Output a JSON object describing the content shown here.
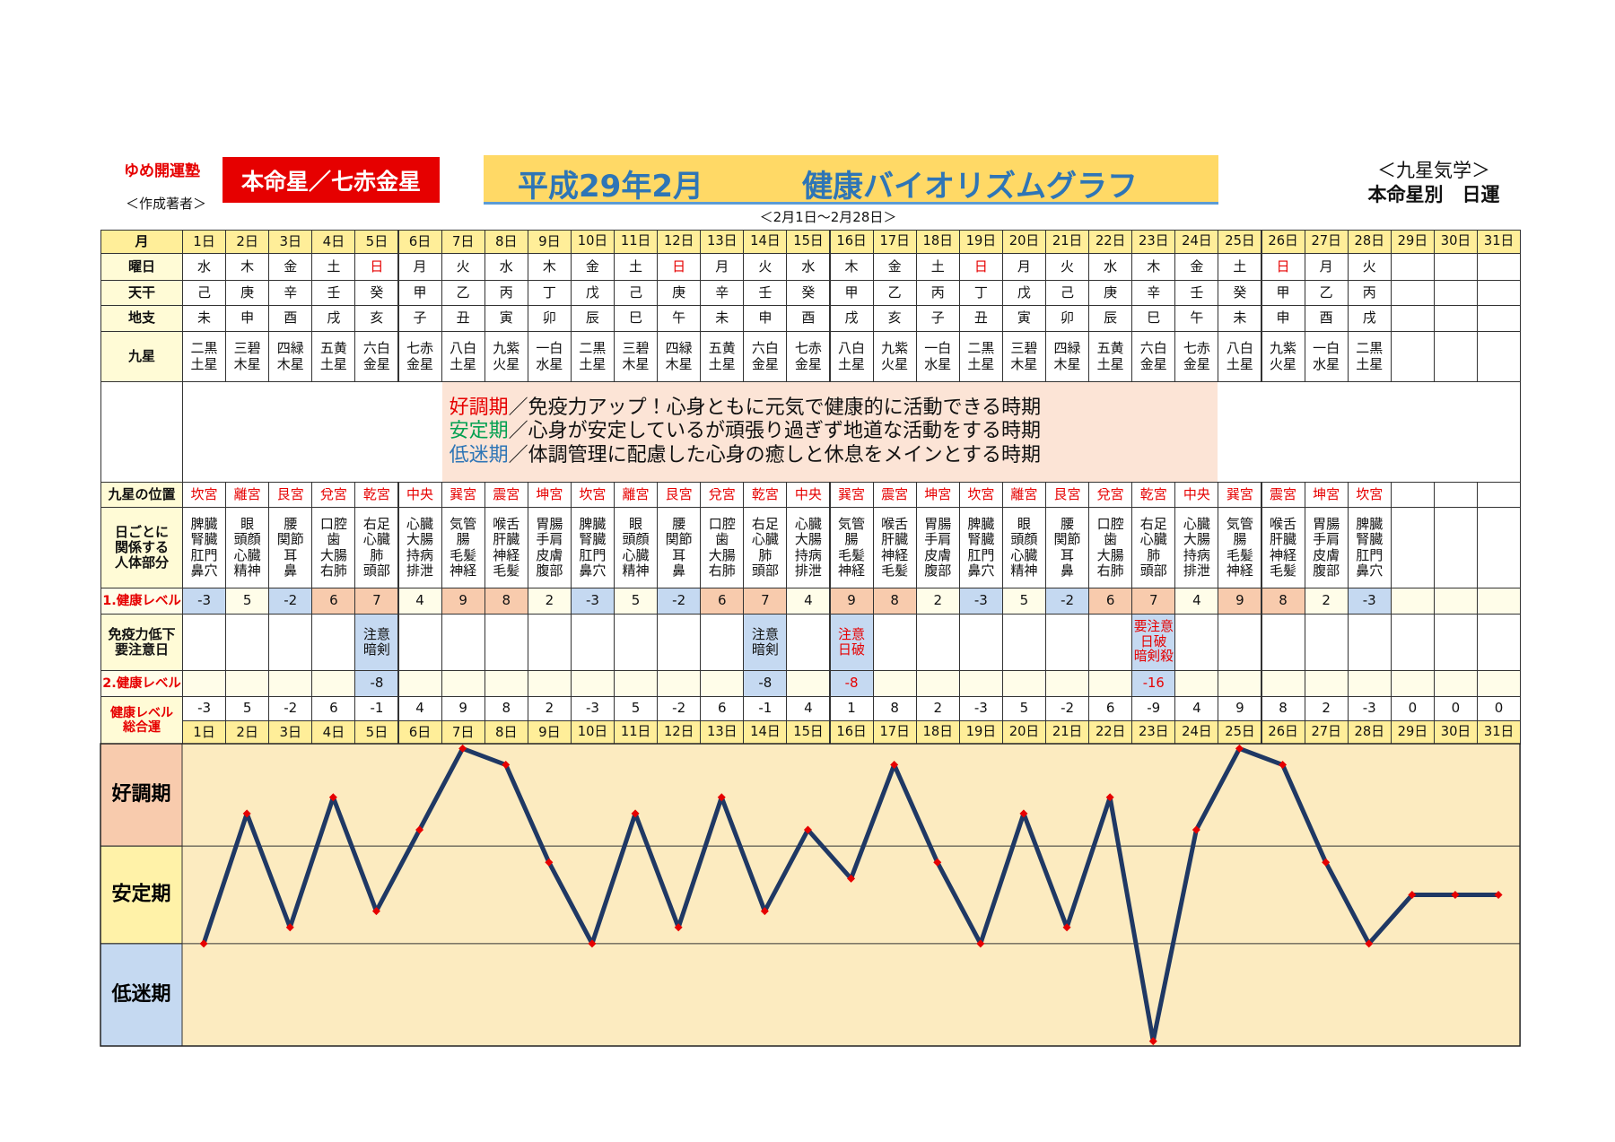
{
  "header": {
    "org": "ゆめ開運塾",
    "author": "＜作成著者＞",
    "star": "本命星／七赤金星",
    "title_month": "平成29年2月",
    "title": "健康バイオリズムグラフ",
    "period": "＜2月1日～2月28日＞",
    "school": "＜九星気学＞",
    "kind": "本命星別　日運"
  },
  "table": {
    "rows": [
      {
        "label": "月",
        "bg": "#ffee99",
        "cells": [
          "1日",
          "2日",
          "3日",
          "4日",
          "5日",
          "6日",
          "7日",
          "8日",
          "9日",
          "10日",
          "11日",
          "12日",
          "13日",
          "14日",
          "15日",
          "16日",
          "17日",
          "18日",
          "19日",
          "20日",
          "21日",
          "22日",
          "23日",
          "24日",
          "25日",
          "26日",
          "27日",
          "28日",
          "29日",
          "30日",
          "31日"
        ]
      },
      {
        "label": "曜日",
        "cells": [
          "水",
          "木",
          "金",
          "土",
          {
            "text": "日",
            "color": "#e60000"
          },
          "月",
          "火",
          "水",
          "木",
          "金",
          "土",
          {
            "text": "日",
            "color": "#e60000"
          },
          "月",
          "火",
          "水",
          "木",
          "金",
          "土",
          {
            "text": "日",
            "color": "#e60000"
          },
          "月",
          "火",
          "水",
          "木",
          "金",
          "土",
          {
            "text": "日",
            "color": "#e60000"
          },
          "月",
          "火",
          null,
          null,
          null
        ]
      },
      {
        "label": "天干",
        "cells": [
          "己",
          "庚",
          "辛",
          "壬",
          "癸",
          "甲",
          "乙",
          "丙",
          "丁",
          "戊",
          "己",
          "庚",
          "辛",
          "壬",
          "癸",
          "甲",
          "乙",
          "丙",
          "丁",
          "戊",
          "己",
          "庚",
          "辛",
          "壬",
          "癸",
          "甲",
          "乙",
          "丙",
          null,
          null,
          null
        ]
      },
      {
        "label": "地支",
        "cells": [
          "未",
          "申",
          "酉",
          "戌",
          "亥",
          "子",
          "丑",
          "寅",
          "卯",
          "辰",
          "巳",
          "午",
          "未",
          "申",
          "酉",
          "戌",
          "亥",
          "子",
          "丑",
          "寅",
          "卯",
          "辰",
          "巳",
          "午",
          "未",
          "申",
          "酉",
          "戌",
          null,
          null,
          null
        ]
      },
      {
        "label": "九星",
        "cells": [
          "二黒\n土星",
          "三碧\n木星",
          "四緑\n木星",
          "五黄\n土星",
          "六白\n金星",
          "七赤\n金星",
          "八白\n土星",
          "九紫\n火星",
          "一白\n水星",
          "二黒\n土星",
          "三碧\n木星",
          "四緑\n木星",
          "五黄\n土星",
          "六白\n金星",
          "七赤\n金星",
          "八白\n土星",
          "九紫\n火星",
          "一白\n水星",
          "二黒\n土星",
          "三碧\n木星",
          "四緑\n木星",
          "五黄\n土星",
          "六白\n金星",
          "七赤\n金星",
          "八白\n土星",
          "九紫\n火星",
          "一白\n水星",
          "二黒\n土星",
          null,
          null,
          null
        ]
      },
      {
        "label": "九星の位置",
        "color": "#e60000",
        "cells": [
          "坎宮",
          "離宮",
          "艮宮",
          "兌宮",
          "乾宮",
          "中央",
          "巽宮",
          "震宮",
          "坤宮",
          "坎宮",
          "離宮",
          "艮宮",
          "兌宮",
          "乾宮",
          "中央",
          "巽宮",
          "震宮",
          "坤宮",
          "坎宮",
          "離宮",
          "艮宮",
          "兌宮",
          "乾宮",
          "中央",
          "巽宮",
          "震宮",
          "坤宮",
          "坎宮",
          null,
          null,
          null
        ]
      },
      {
        "label": "日ごとに\n関係する\n人体部分",
        "cells": [
          "脾臓\n腎臓\n肛門\n鼻穴",
          "眼\n頭顔\n心臓\n精神",
          "腰\n関節\n耳\n鼻",
          "口腔\n歯\n大腸\n右肺",
          "右足\n心臓\n肺\n頭部",
          "心臓\n大腸\n持病\n排泄",
          "気管\n腸\n毛髪\n神経",
          "喉舌\n肝臓\n神経\n毛髪",
          "胃腸\n手肩\n皮膚\n腹部",
          "脾臓\n腎臓\n肛門\n鼻穴",
          "眼\n頭顔\n心臓\n精神",
          "腰\n関節\n耳\n鼻",
          "口腔\n歯\n大腸\n右肺",
          "右足\n心臓\n肺\n頭部",
          "心臓\n大腸\n持病\n排泄",
          "気管\n腸\n毛髪\n神経",
          "喉舌\n肝臓\n神経\n毛髪",
          "胃腸\n手肩\n皮膚\n腹部",
          "脾臓\n腎臓\n肛門\n鼻穴",
          "眼\n頭顔\n心臓\n精神",
          "腰\n関節\n耳\n鼻",
          "口腔\n歯\n大腸\n右肺",
          "右足\n心臓\n肺\n頭部",
          "心臓\n大腸\n持病\n排泄",
          "気管\n腸\n毛髪\n神経",
          "喉舌\n肝臓\n神経\n毛髪",
          "胃腸\n手肩\n皮膚\n腹部",
          "脾臓\n腎臓\n肛門\n鼻穴",
          null,
          null,
          null
        ]
      },
      {
        "label": "1.健康レベル",
        "label_color": "#e60000",
        "bg": "#fffde9",
        "cells": [
          {
            "value": -3,
            "bg": "#c5d9f1"
          },
          5,
          {
            "value": -2,
            "bg": "#c5d9f1"
          },
          {
            "value": 6,
            "bg": "#f8cbad"
          },
          {
            "value": 7,
            "bg": "#f8cbad"
          },
          4,
          {
            "value": 9,
            "bg": "#f8cbad"
          },
          {
            "value": 8,
            "bg": "#f8cbad"
          },
          2,
          {
            "value": -3,
            "bg": "#c5d9f1"
          },
          5,
          {
            "value": -2,
            "bg": "#c5d9f1"
          },
          {
            "value": 6,
            "bg": "#f8cbad"
          },
          {
            "value": 7,
            "bg": "#f8cbad"
          },
          4,
          {
            "value": 9,
            "bg": "#f8cbad"
          },
          {
            "value": 8,
            "bg": "#f8cbad"
          },
          2,
          {
            "value": -3,
            "bg": "#c5d9f1"
          },
          5,
          {
            "value": -2,
            "bg": "#c5d9f1"
          },
          {
            "value": 6,
            "bg": "#f8cbad"
          },
          {
            "value": 7,
            "bg": "#f8cbad"
          },
          4,
          {
            "value": 9,
            "bg": "#f8cbad"
          },
          {
            "value": 8,
            "bg": "#f8cbad"
          },
          2,
          {
            "value": -3,
            "bg": "#c5d9f1"
          },
          null,
          null,
          null
        ]
      },
      {
        "label": "免疫力低下\n要注意日",
        "cells": [
          null,
          null,
          null,
          null,
          {
            "text": "注意\n暗剣",
            "bg": "#c5d9f1"
          },
          null,
          null,
          null,
          null,
          null,
          null,
          null,
          null,
          {
            "text": "注意\n暗剣",
            "bg": "#c5d9f1"
          },
          null,
          {
            "text": "注意\n日破",
            "color": "#e60000",
            "bg": "#c5d9f1"
          },
          null,
          null,
          null,
          null,
          null,
          null,
          {
            "text": "要注意\n日破\n暗剣殺",
            "color": "#e60000",
            "bg": "#c5d9f1"
          },
          null,
          null,
          null,
          null,
          null,
          null,
          null,
          null
        ]
      },
      {
        "label": "2.健康レベル",
        "label_color": "#e60000",
        "bg": "#fffde9",
        "cells": [
          null,
          null,
          null,
          null,
          {
            "value": -8,
            "bg": "#c5d9f1"
          },
          null,
          null,
          null,
          null,
          null,
          null,
          null,
          null,
          {
            "value": -8,
            "bg": "#c5d9f1"
          },
          null,
          {
            "value": -8,
            "color": "#e60000",
            "bg": "#c5d9f1"
          },
          null,
          null,
          null,
          null,
          null,
          null,
          {
            "value": -16,
            "color": "#e60000",
            "bg": "#c5d9f1"
          },
          null,
          null,
          null,
          null,
          null,
          null,
          null,
          null
        ]
      }
    ]
  },
  "message": [
    {
      "key": "好調期",
      "key_color": "#e60000",
      "text": "／免疫力アップ！心身ともに元気で健康的に活動できる時期"
    },
    {
      "key": "安定期",
      "key_color": "#00a050",
      "text": "／心身が安定しているが頑張り過ぎず地道な活動をする時期"
    },
    {
      "key": "低迷期",
      "key_color": "#2e75b6",
      "text": "／体調管理に配慮した心身の癒しと休息をメインとする時期"
    }
  ],
  "chart_data": {
    "type": "line",
    "label": "健康レベル\n総合運",
    "categories": [
      "1日",
      "2日",
      "3日",
      "4日",
      "5日",
      "6日",
      "7日",
      "8日",
      "9日",
      "10日",
      "11日",
      "12日",
      "13日",
      "14日",
      "15日",
      "16日",
      "17日",
      "18日",
      "19日",
      "20日",
      "21日",
      "22日",
      "23日",
      "24日",
      "25日",
      "26日",
      "27日",
      "28日",
      "29日",
      "30日",
      "31日"
    ],
    "values": [
      -3,
      5,
      -2,
      6,
      -1,
      4,
      9,
      8,
      2,
      -3,
      5,
      -2,
      6,
      -1,
      4,
      1,
      8,
      2,
      -3,
      5,
      -2,
      6,
      -9,
      4,
      9,
      8,
      2,
      -3,
      0,
      0,
      0
    ],
    "ylim": [
      -9.3,
      9.3
    ],
    "band_edges": [
      3,
      -3
    ],
    "bands": [
      {
        "label": "好調期",
        "color": "#f8cbad"
      },
      {
        "label": "安定期",
        "color": "#fff2a8"
      },
      {
        "label": "低迷期",
        "color": "#c5d9f1"
      }
    ],
    "line_color": "#1f3864",
    "marker_color": "#e60000",
    "plot_bg": "#fcebc0"
  }
}
